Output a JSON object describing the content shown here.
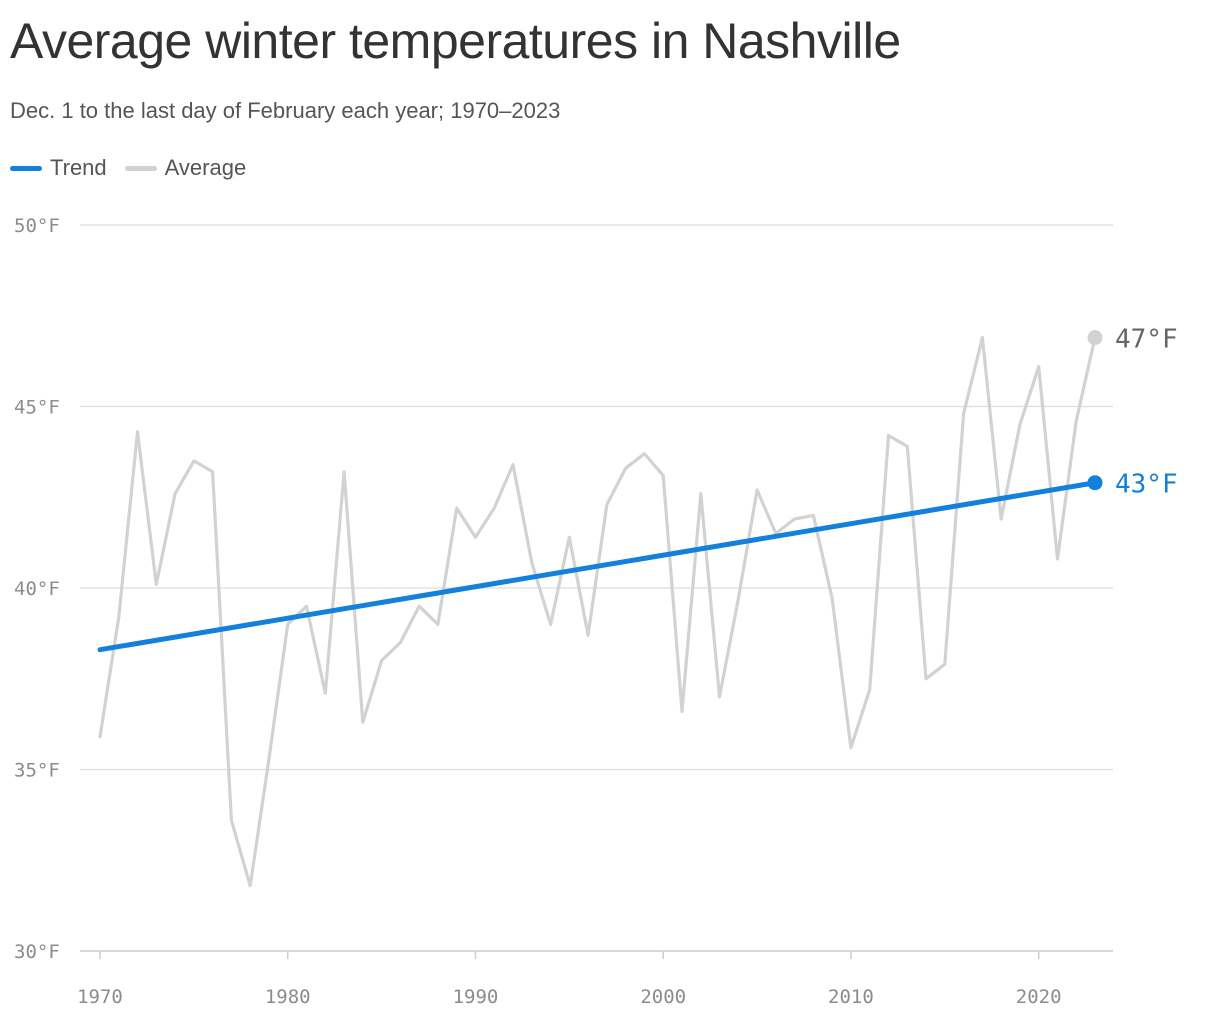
{
  "title": "Average winter temperatures in Nashville",
  "subtitle": "Dec. 1 to the last day of February each year; 1970–2023",
  "colors": {
    "trend": "#1380dc",
    "average": "#d2d2d2",
    "grid": "#dddddd",
    "axis_text": "#8c8c8c",
    "end_label_average": "#666666"
  },
  "chart_data": {
    "type": "line",
    "title": "Average winter temperatures in Nashville",
    "subtitle": "Dec. 1 to the last day of February each year; 1970–2023",
    "xlabel": "",
    "ylabel": "",
    "xlim": [
      1970,
      2023
    ],
    "ylim": [
      30,
      50
    ],
    "grid": true,
    "legend_position": "top-left",
    "y_ticks": [
      {
        "value": 50,
        "label": "50°F"
      },
      {
        "value": 45,
        "label": "45°F"
      },
      {
        "value": 40,
        "label": "40°F"
      },
      {
        "value": 35,
        "label": "35°F"
      },
      {
        "value": 30,
        "label": "30°F"
      }
    ],
    "x_ticks": [
      {
        "value": 1970,
        "label": "1970"
      },
      {
        "value": 1980,
        "label": "1980"
      },
      {
        "value": 1990,
        "label": "1990"
      },
      {
        "value": 2000,
        "label": "2000"
      },
      {
        "value": 2010,
        "label": "2010"
      },
      {
        "value": 2020,
        "label": "2020"
      }
    ],
    "x": [
      1970,
      1971,
      1972,
      1973,
      1974,
      1975,
      1976,
      1977,
      1978,
      1979,
      1980,
      1981,
      1982,
      1983,
      1984,
      1985,
      1986,
      1987,
      1988,
      1989,
      1990,
      1991,
      1992,
      1993,
      1994,
      1995,
      1996,
      1997,
      1998,
      1999,
      2000,
      2001,
      2002,
      2003,
      2004,
      2005,
      2006,
      2007,
      2008,
      2009,
      2010,
      2011,
      2012,
      2013,
      2014,
      2015,
      2016,
      2017,
      2018,
      2019,
      2020,
      2021,
      2022,
      2023
    ],
    "series": [
      {
        "name": "Average",
        "values": [
          35.9,
          39.2,
          44.3,
          40.1,
          42.6,
          43.5,
          43.2,
          33.6,
          31.8,
          35.3,
          39.0,
          39.5,
          37.1,
          43.2,
          36.3,
          38.0,
          38.5,
          39.5,
          39.0,
          42.2,
          41.4,
          42.2,
          43.4,
          40.7,
          39.0,
          41.4,
          38.7,
          42.3,
          43.3,
          43.7,
          43.1,
          36.6,
          42.6,
          37.0,
          39.7,
          42.7,
          41.5,
          41.9,
          42.0,
          39.7,
          35.6,
          37.2,
          44.2,
          43.9,
          37.5,
          37.9,
          44.8,
          46.9,
          41.9,
          44.5,
          46.1,
          40.8,
          44.6,
          46.9
        ],
        "end_label": "47°F"
      },
      {
        "name": "Trend",
        "start": {
          "x": 1970,
          "y": 38.3
        },
        "end": {
          "x": 2023,
          "y": 42.9
        },
        "end_label": "43°F"
      }
    ]
  }
}
